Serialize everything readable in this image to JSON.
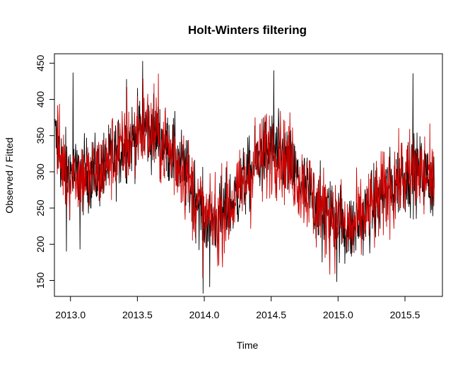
{
  "chart_data": {
    "type": "line",
    "title": "Holt-Winters filtering",
    "xlabel": "Time",
    "ylabel": "Observed / Fitted",
    "xlim": [
      2012.88,
      2015.78
    ],
    "ylim": [
      128,
      463
    ],
    "x_ticks": [
      2013.0,
      2013.5,
      2014.0,
      2014.5,
      2015.0,
      2015.5
    ],
    "x_tick_labels": [
      "2013.0",
      "2013.5",
      "2014.0",
      "2014.5",
      "2015.0",
      "2015.5"
    ],
    "y_ticks": [
      150,
      200,
      250,
      300,
      350,
      400,
      450
    ],
    "y_tick_labels": [
      "150",
      "200",
      "250",
      "300",
      "350",
      "400",
      "450"
    ],
    "grid": false,
    "series": [
      {
        "role": "observed",
        "color": "#000000",
        "start": 2012.885,
        "step_days": 1,
        "level_curve": [
          [
            2012.88,
            350
          ],
          [
            2012.95,
            305
          ],
          [
            2013.05,
            295
          ],
          [
            2013.15,
            295
          ],
          [
            2013.25,
            305
          ],
          [
            2013.35,
            325
          ],
          [
            2013.45,
            345
          ],
          [
            2013.55,
            360
          ],
          [
            2013.65,
            350
          ],
          [
            2013.75,
            330
          ],
          [
            2013.85,
            300
          ],
          [
            2013.95,
            260
          ],
          [
            2014.0,
            235
          ],
          [
            2014.1,
            235
          ],
          [
            2014.2,
            255
          ],
          [
            2014.3,
            285
          ],
          [
            2014.4,
            315
          ],
          [
            2014.5,
            330
          ],
          [
            2014.6,
            320
          ],
          [
            2014.7,
            290
          ],
          [
            2014.8,
            265
          ],
          [
            2014.9,
            245
          ],
          [
            2015.0,
            235
          ],
          [
            2015.1,
            220
          ],
          [
            2015.2,
            240
          ],
          [
            2015.3,
            260
          ],
          [
            2015.4,
            280
          ],
          [
            2015.5,
            295
          ],
          [
            2015.6,
            300
          ],
          [
            2015.72,
            285
          ]
        ],
        "extremes": [
          [
            2013.02,
            437
          ],
          [
            2012.97,
            190
          ],
          [
            2013.07,
            193
          ],
          [
            2013.42,
            428
          ],
          [
            2013.54,
            453
          ],
          [
            2013.99,
            132
          ],
          [
            2014.04,
            141
          ],
          [
            2014.52,
            440
          ],
          [
            2014.88,
            175
          ],
          [
            2014.99,
            148
          ],
          [
            2015.05,
            173
          ],
          [
            2015.56,
            436
          ],
          [
            2015.69,
            243
          ]
        ]
      },
      {
        "role": "fitted",
        "color": "#cc0000",
        "start": 2012.885,
        "step_days": 1
      }
    ]
  }
}
